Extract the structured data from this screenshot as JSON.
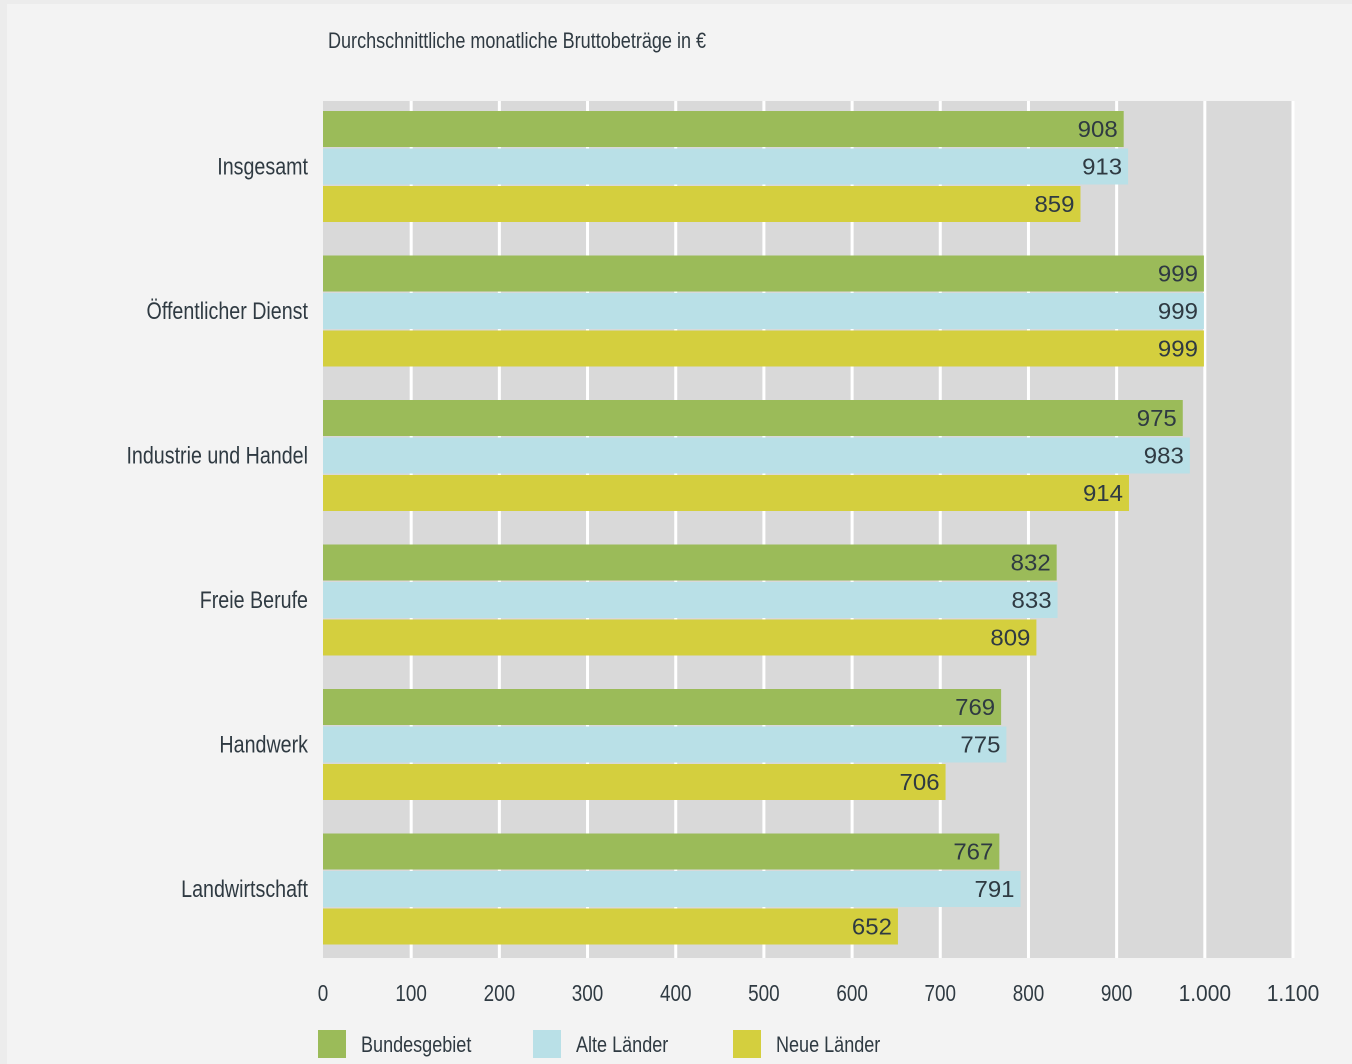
{
  "chart_data": {
    "type": "bar",
    "orientation": "horizontal",
    "title": "Durchschnittliche monatliche Bruttobeträge in €",
    "xlabel": "",
    "ylabel": "",
    "categories": [
      "Insgesamt",
      "Öffentlicher Dienst",
      "Industrie und Handel",
      "Freie Berufe",
      "Handwerk",
      "Landwirtschaft"
    ],
    "series": [
      {
        "name": "Bundesgebiet",
        "color": "#9bbb59",
        "values": [
          908,
          999,
          975,
          832,
          769,
          767
        ],
        "labels": [
          "908",
          "999",
          "975",
          "832",
          "769",
          "767"
        ]
      },
      {
        "name": "Alte Länder",
        "color": "#b9e0e7",
        "values": [
          913,
          999,
          983,
          833,
          775,
          791
        ],
        "labels": [
          "913",
          "999",
          "983",
          "833",
          "775",
          "791"
        ]
      },
      {
        "name": "Neue Länder",
        "color": "#d4cf3e",
        "values": [
          859,
          999,
          914,
          809,
          706,
          652
        ],
        "labels": [
          "859",
          "999",
          "914",
          "809",
          "706",
          "652"
        ]
      }
    ],
    "xlim": [
      0,
      1100
    ],
    "ticks": [
      0,
      100,
      200,
      300,
      400,
      500,
      600,
      700,
      800,
      900,
      1000,
      1100
    ],
    "tick_labels": [
      "0",
      "100",
      "200",
      "300",
      "400",
      "500",
      "600",
      "700",
      "800",
      "900",
      "1.000",
      "1.100"
    ],
    "grid": true,
    "legend_position": "bottom-left",
    "plot_background": "#d9d9d9",
    "grid_color": "#ffffff"
  }
}
